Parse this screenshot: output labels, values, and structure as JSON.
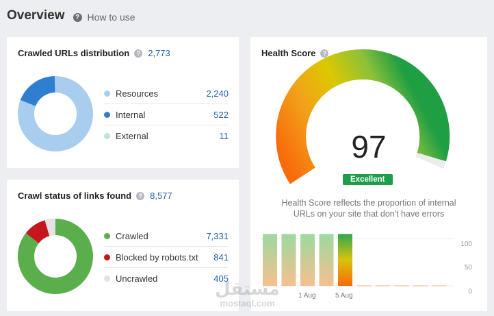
{
  "header": {
    "title": "Overview",
    "help_glyph": "?",
    "how_to_label": "How to use"
  },
  "crawled_urls": {
    "title": "Crawled URLs distribution",
    "total": "2,773",
    "items": [
      {
        "label": "Resources",
        "value": "2,240",
        "color": "#a9cdef"
      },
      {
        "label": "Internal",
        "value": "522",
        "color": "#2f7fd0"
      },
      {
        "label": "External",
        "value": "11",
        "color": "#bfe6d2"
      }
    ]
  },
  "crawl_status": {
    "title": "Crawl status of links found",
    "total": "8,577",
    "items": [
      {
        "label": "Crawled",
        "value": "7,331",
        "color": "#5aae4c"
      },
      {
        "label": "Blocked by robots.txt",
        "value": "841",
        "color": "#c4161c"
      },
      {
        "label": "Uncrawled",
        "value": "405",
        "color": "#e2e3e5"
      }
    ]
  },
  "health_score": {
    "title": "Health Score",
    "score": "97",
    "rating": "Excellent",
    "description_line1": "Health Score reflects the proportion of internal",
    "description_line2": "URLs on your site that don't have errors",
    "chart_data": {
      "type": "bar",
      "y_ticks": [
        "100",
        "50",
        "0"
      ],
      "ylim": [
        0,
        100
      ],
      "x_labels": [
        "1 Aug",
        "5 Aug"
      ],
      "values": [
        97,
        97,
        97,
        97,
        97,
        0,
        0,
        0,
        0,
        0
      ],
      "highlight_index": 4
    }
  },
  "watermark": {
    "arabic": "مستقل",
    "latin": "mostaql.com"
  }
}
